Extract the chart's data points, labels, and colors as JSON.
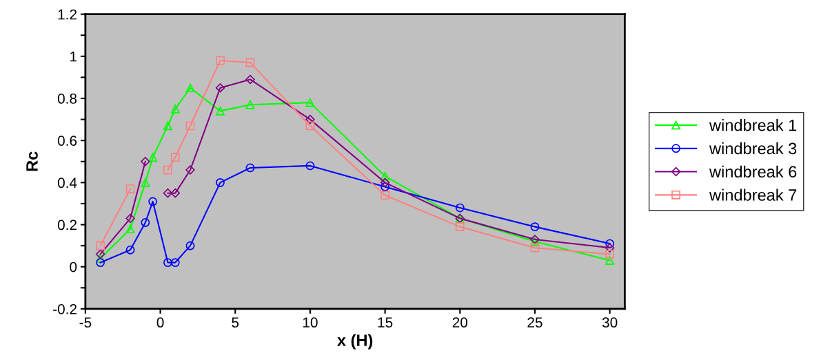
{
  "chart_data": {
    "type": "line",
    "xlabel": "x (H)",
    "ylabel": "Rc",
    "x": [
      -4,
      -2,
      -1,
      -0.5,
      0.5,
      1,
      2,
      4,
      6,
      10,
      15,
      20,
      25,
      30
    ],
    "series": [
      {
        "name": "windbreak 1",
        "color": "#00ff00",
        "marker": "triangle",
        "values": [
          0.04,
          0.18,
          0.4,
          0.52,
          0.67,
          0.75,
          0.85,
          0.74,
          0.77,
          0.78,
          0.43,
          0.23,
          0.12,
          0.03
        ]
      },
      {
        "name": "windbreak 3",
        "color": "#0000ff",
        "marker": "circle",
        "values": [
          0.02,
          0.08,
          0.21,
          0.31,
          0.02,
          0.02,
          0.1,
          0.4,
          0.47,
          0.48,
          0.38,
          0.28,
          0.19,
          0.11
        ]
      },
      {
        "name": "windbreak 6",
        "color": "#800080",
        "marker": "diamond",
        "values": [
          0.06,
          0.23,
          0.5,
          null,
          0.35,
          0.35,
          0.46,
          0.85,
          0.89,
          0.7,
          0.4,
          0.23,
          0.13,
          0.09
        ]
      },
      {
        "name": "windbreak 7",
        "color": "#ff8080",
        "marker": "square",
        "values": [
          0.1,
          0.37,
          null,
          null,
          0.46,
          0.52,
          0.67,
          0.98,
          0.97,
          0.67,
          0.34,
          0.19,
          0.09,
          0.06
        ]
      }
    ],
    "xlim": [
      -5,
      31
    ],
    "xticks": [
      -5,
      0,
      5,
      10,
      15,
      20,
      25,
      30
    ],
    "ylim": [
      -0.2,
      1.2
    ],
    "yticks": [
      -0.2,
      {
        "value": -0.1,
        "label": null
      },
      0,
      {
        "value": 0.1,
        "label": null
      },
      0.2,
      {
        "value": 0.3,
        "label": null
      },
      0.4,
      {
        "value": 0.5,
        "label": null
      },
      0.6,
      {
        "value": 0.7,
        "label": null
      },
      0.8,
      {
        "value": 0.9,
        "label": null
      },
      1,
      {
        "value": 1.1,
        "label": null
      },
      1.2
    ],
    "grid": false,
    "legend": "right",
    "line_style": "solid"
  }
}
